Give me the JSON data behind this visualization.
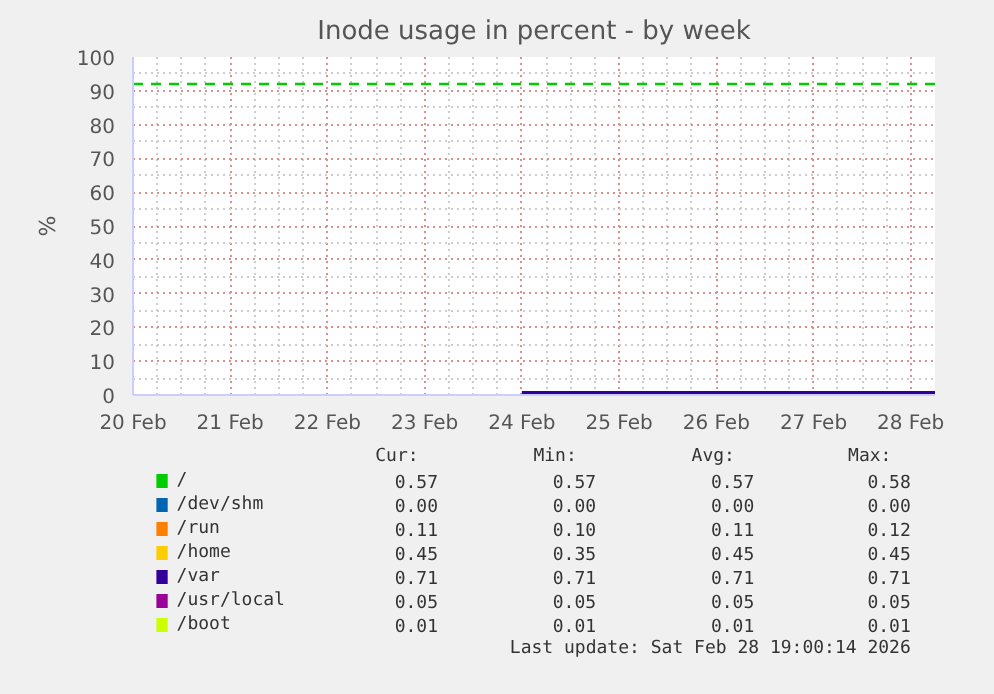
{
  "chart_data": {
    "type": "line",
    "title": "Inode usage in percent - by week",
    "ylabel": "%",
    "x": [
      "2026-02-24T00:00",
      "2026-02-28T06:00"
    ],
    "xlim": [
      "2026-02-20T00:00",
      "2026-02-28T06:00"
    ],
    "xticks": [
      {
        "value": "2026-02-20",
        "label": "20 Feb"
      },
      {
        "value": "2026-02-21",
        "label": "21 Feb"
      },
      {
        "value": "2026-02-22",
        "label": "22 Feb"
      },
      {
        "value": "2026-02-23",
        "label": "23 Feb"
      },
      {
        "value": "2026-02-24",
        "label": "24 Feb"
      },
      {
        "value": "2026-02-25",
        "label": "25 Feb"
      },
      {
        "value": "2026-02-26",
        "label": "26 Feb"
      },
      {
        "value": "2026-02-27",
        "label": "27 Feb"
      },
      {
        "value": "2026-02-28",
        "label": "28 Feb"
      }
    ],
    "ylim": [
      0,
      100
    ],
    "yticks": [
      0,
      10,
      20,
      30,
      40,
      50,
      60,
      70,
      80,
      90,
      100
    ],
    "grid": true,
    "legend": "bottom",
    "series": [
      {
        "name": "/",
        "color": "#00cc00",
        "values": [
          null,
          null
        ]
      },
      {
        "name": "/dev/shm",
        "color": "#0066b3",
        "values": [
          null,
          null
        ]
      },
      {
        "name": "/run",
        "color": "#ff8000",
        "values": [
          null,
          null
        ]
      },
      {
        "name": "/home",
        "color": "#ffcc00",
        "values": [
          null,
          null
        ]
      },
      {
        "name": "/var",
        "color": "#330099",
        "values": [
          0.71,
          0.71
        ]
      },
      {
        "name": "/usr/local",
        "color": "#990099",
        "values": [
          null,
          null
        ]
      },
      {
        "name": "/boot",
        "color": "#ccff00",
        "values": [
          null,
          null
        ]
      }
    ],
    "ref_lines": [
      {
        "axis": "y",
        "value": 92,
        "color": "#00cc00",
        "line_style": "dashed"
      }
    ],
    "annotations": [
      "Cur:",
      "Min:",
      "Avg:",
      "Max:",
      "0.57",
      "0.57",
      "0.57",
      "0.58",
      "0.00",
      "0.00",
      "0.00",
      "0.00",
      "0.11",
      "0.10",
      "0.11",
      "0.12",
      "0.45",
      "0.35",
      "0.45",
      "0.45",
      "0.71",
      "0.71",
      "0.71",
      "0.71",
      "0.05",
      "0.05",
      "0.05",
      "0.05",
      "0.01",
      "0.01",
      "0.01",
      "0.01",
      "Last update: Sat Feb 28 19:00:14 2026"
    ]
  }
}
